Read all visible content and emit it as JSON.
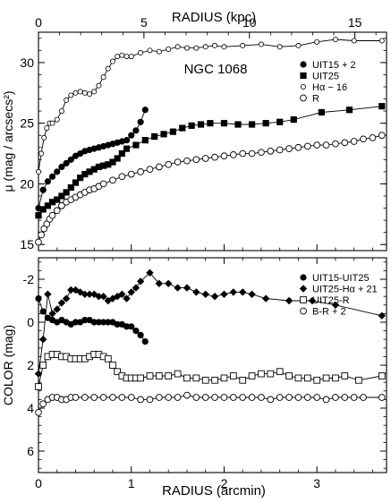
{
  "figure_labels": {
    "top_axis_label": "RADIUS (kpc)",
    "bottom_axis_label": "RADIUS (arcmin)",
    "galaxy_name": "NGC 1068"
  },
  "chart_data": [
    {
      "type": "line",
      "title": "NGC 1068",
      "ylabel": "μ (mag / arcsecs²)",
      "xlabel_top": "RADIUS (kpc)",
      "x_top_ticks": [
        0,
        5,
        10,
        15
      ],
      "x_top_lim": [
        0,
        16.5
      ],
      "xlim": [
        0,
        3.75
      ],
      "ylim": [
        32.5,
        14.5
      ],
      "y_reversed": true,
      "y_ticks": [
        15,
        20,
        25,
        30
      ],
      "grid": false,
      "legend_position": "top-right",
      "series": [
        {
          "name": "UIT15 + 2",
          "marker": "filled-circle",
          "x": [
            0,
            0.05,
            0.1,
            0.15,
            0.2,
            0.25,
            0.3,
            0.35,
            0.4,
            0.45,
            0.5,
            0.55,
            0.6,
            0.65,
            0.7,
            0.75,
            0.8,
            0.85,
            0.9,
            0.95,
            1.0,
            1.05,
            1.1,
            1.15
          ],
          "y": [
            18.0,
            19.5,
            20.2,
            20.6,
            21.0,
            21.4,
            21.7,
            22.0,
            22.3,
            22.5,
            22.7,
            22.8,
            22.9,
            23.0,
            23.1,
            23.2,
            23.3,
            23.4,
            23.5,
            23.6,
            24.0,
            24.4,
            25.1,
            26.1
          ]
        },
        {
          "name": "UIT25",
          "marker": "filled-square",
          "x": [
            0,
            0.05,
            0.1,
            0.15,
            0.2,
            0.25,
            0.3,
            0.35,
            0.4,
            0.45,
            0.5,
            0.55,
            0.6,
            0.65,
            0.7,
            0.75,
            0.8,
            0.85,
            0.9,
            0.95,
            1.05,
            1.15,
            1.25,
            1.35,
            1.45,
            1.55,
            1.65,
            1.75,
            1.85,
            2.0,
            2.15,
            2.3,
            2.45,
            2.6,
            2.75,
            3.05,
            3.35,
            3.7
          ],
          "y": [
            17.4,
            17.9,
            18.2,
            18.5,
            18.7,
            19.0,
            19.3,
            19.7,
            20.1,
            20.5,
            20.8,
            21.0,
            21.2,
            21.4,
            21.5,
            21.6,
            21.8,
            22.1,
            22.5,
            22.9,
            23.2,
            23.6,
            23.9,
            24.1,
            24.3,
            24.6,
            24.8,
            24.9,
            25.0,
            25.0,
            24.9,
            24.9,
            25.0,
            25.1,
            25.3,
            25.9,
            26.1,
            26.4
          ]
        },
        {
          "name": "Hα − 16",
          "marker": "open-circle-small",
          "x": [
            0,
            0.03,
            0.06,
            0.09,
            0.12,
            0.15,
            0.2,
            0.25,
            0.3,
            0.35,
            0.4,
            0.45,
            0.5,
            0.55,
            0.6,
            0.65,
            0.7,
            0.75,
            0.8,
            0.85,
            0.9,
            0.95,
            1.0,
            1.1,
            1.2,
            1.3,
            1.4,
            1.5,
            1.6,
            1.7,
            1.8,
            1.9,
            2.0,
            2.2,
            2.4,
            2.6,
            2.8,
            3.0,
            3.2,
            3.4,
            3.7
          ],
          "y": [
            21.0,
            22.5,
            23.8,
            24.6,
            25.0,
            25.0,
            25.3,
            26.0,
            26.9,
            27.3,
            27.5,
            27.6,
            27.5,
            27.4,
            27.6,
            28.1,
            28.8,
            29.5,
            30.1,
            30.5,
            30.6,
            30.5,
            30.5,
            30.8,
            31.0,
            30.9,
            31.1,
            31.3,
            31.2,
            31.2,
            31.3,
            31.4,
            31.3,
            31.4,
            31.5,
            31.3,
            31.4,
            31.7,
            31.9,
            31.8,
            31.8
          ]
        },
        {
          "name": "R",
          "marker": "open-circle",
          "x": [
            0,
            0.03,
            0.06,
            0.09,
            0.12,
            0.15,
            0.2,
            0.25,
            0.3,
            0.35,
            0.4,
            0.45,
            0.5,
            0.55,
            0.6,
            0.65,
            0.7,
            0.8,
            0.9,
            1.0,
            1.1,
            1.2,
            1.3,
            1.4,
            1.5,
            1.6,
            1.7,
            1.8,
            1.9,
            2.0,
            2.1,
            2.2,
            2.3,
            2.4,
            2.5,
            2.6,
            2.7,
            2.8,
            2.9,
            3.0,
            3.1,
            3.2,
            3.3,
            3.4,
            3.5,
            3.6,
            3.7
          ],
          "y": [
            15.2,
            15.8,
            16.3,
            16.7,
            17.1,
            17.4,
            17.8,
            18.2,
            18.5,
            18.7,
            18.9,
            19.1,
            19.3,
            19.5,
            19.6,
            19.8,
            20.0,
            20.3,
            20.6,
            20.8,
            21.0,
            21.2,
            21.4,
            21.6,
            21.8,
            21.9,
            22.0,
            22.1,
            22.2,
            22.3,
            22.4,
            22.5,
            22.5,
            22.6,
            22.7,
            22.8,
            22.9,
            23.0,
            23.1,
            23.2,
            23.2,
            23.3,
            23.4,
            23.5,
            23.7,
            23.8,
            24.0
          ]
        }
      ]
    },
    {
      "type": "line",
      "xlabel": "RADIUS (arcmin)",
      "ylabel": "COLOR (mag)",
      "xlim": [
        0,
        3.75
      ],
      "x_ticks": [
        0,
        1,
        2,
        3
      ],
      "ylim": [
        -3,
        7
      ],
      "y_ticks": [
        -2,
        0,
        2,
        4,
        6
      ],
      "grid": false,
      "legend_position": "top-right",
      "series": [
        {
          "name": "UIT15-UIT25",
          "marker": "filled-circle",
          "x": [
            0,
            0.05,
            0.1,
            0.15,
            0.2,
            0.25,
            0.3,
            0.35,
            0.4,
            0.45,
            0.5,
            0.55,
            0.6,
            0.65,
            0.7,
            0.75,
            0.8,
            0.85,
            0.9,
            0.95,
            1.0,
            1.05,
            1.1,
            1.15
          ],
          "y": [
            -1.1,
            -0.5,
            -0.2,
            -0.1,
            0.0,
            -0.1,
            0.0,
            0.1,
            0.0,
            0.0,
            -0.1,
            -0.1,
            0.0,
            0.0,
            0.0,
            0.0,
            0.0,
            0.1,
            0.1,
            0.2,
            0.2,
            0.4,
            0.6,
            0.9
          ]
        },
        {
          "name": "UIT25-Hα + 21",
          "marker": "filled-diamond",
          "x": [
            0,
            0.05,
            0.1,
            0.15,
            0.2,
            0.25,
            0.3,
            0.35,
            0.4,
            0.45,
            0.5,
            0.55,
            0.6,
            0.65,
            0.7,
            0.75,
            0.8,
            0.85,
            0.9,
            0.95,
            1.0,
            1.05,
            1.1,
            1.2,
            1.3,
            1.4,
            1.5,
            1.6,
            1.7,
            1.8,
            1.9,
            2.0,
            2.1,
            2.2,
            2.3,
            2.45,
            2.7,
            2.95,
            3.2,
            3.7
          ],
          "y": [
            2.4,
            0.8,
            -1.3,
            -0.4,
            -0.6,
            -0.9,
            -1.1,
            -1.5,
            -1.5,
            -1.4,
            -1.3,
            -1.3,
            -1.3,
            -1.2,
            -1.2,
            -1.0,
            -1.1,
            -1.2,
            -1.3,
            -1.1,
            -1.4,
            -1.6,
            -1.9,
            -2.3,
            -1.8,
            -1.8,
            -1.6,
            -1.6,
            -1.4,
            -1.3,
            -1.2,
            -1.3,
            -1.4,
            -1.4,
            -1.3,
            -1.1,
            -1.0,
            -1.0,
            -0.8,
            -0.3
          ]
        },
        {
          "name": "UIT25-R",
          "marker": "open-square",
          "x": [
            0,
            0.05,
            0.1,
            0.15,
            0.2,
            0.25,
            0.3,
            0.35,
            0.4,
            0.45,
            0.5,
            0.55,
            0.6,
            0.65,
            0.7,
            0.75,
            0.8,
            0.85,
            0.9,
            0.95,
            1.0,
            1.05,
            1.1,
            1.2,
            1.3,
            1.4,
            1.5,
            1.6,
            1.7,
            1.8,
            1.9,
            2.0,
            2.1,
            2.2,
            2.3,
            2.4,
            2.5,
            2.6,
            2.7,
            2.8,
            2.9,
            3.0,
            3.1,
            3.2,
            3.3,
            3.45,
            3.7
          ],
          "y": [
            3.0,
            2.0,
            1.6,
            1.5,
            1.5,
            1.6,
            1.6,
            1.7,
            1.7,
            1.7,
            1.7,
            1.6,
            1.5,
            1.5,
            1.6,
            1.7,
            2.0,
            2.3,
            2.5,
            2.6,
            2.6,
            2.6,
            2.6,
            2.5,
            2.5,
            2.5,
            2.4,
            2.6,
            2.6,
            2.7,
            2.7,
            2.6,
            2.5,
            2.7,
            2.5,
            2.4,
            2.4,
            2.3,
            2.5,
            2.6,
            2.6,
            2.7,
            2.6,
            2.6,
            2.5,
            2.7,
            2.5
          ]
        },
        {
          "name": "B-R + 2",
          "marker": "open-circle",
          "x": [
            0,
            0.05,
            0.1,
            0.15,
            0.2,
            0.25,
            0.3,
            0.35,
            0.4,
            0.5,
            0.6,
            0.7,
            0.8,
            0.9,
            1.0,
            1.1,
            1.2,
            1.3,
            1.4,
            1.5,
            1.6,
            1.7,
            1.8,
            1.9,
            2.0,
            2.1,
            2.2,
            2.3,
            2.4,
            2.5,
            2.6,
            2.7,
            2.8,
            2.9,
            3.0,
            3.1,
            3.2,
            3.3,
            3.4,
            3.5,
            3.7
          ],
          "y": [
            4.2,
            3.8,
            3.6,
            3.5,
            3.5,
            3.6,
            3.6,
            3.5,
            3.5,
            3.5,
            3.5,
            3.5,
            3.5,
            3.5,
            3.5,
            3.6,
            3.6,
            3.5,
            3.5,
            3.5,
            3.4,
            3.5,
            3.5,
            3.5,
            3.5,
            3.5,
            3.5,
            3.5,
            3.5,
            3.6,
            3.5,
            3.5,
            3.5,
            3.5,
            3.5,
            3.6,
            3.5,
            3.5,
            3.5,
            3.5,
            3.5
          ]
        }
      ]
    }
  ]
}
